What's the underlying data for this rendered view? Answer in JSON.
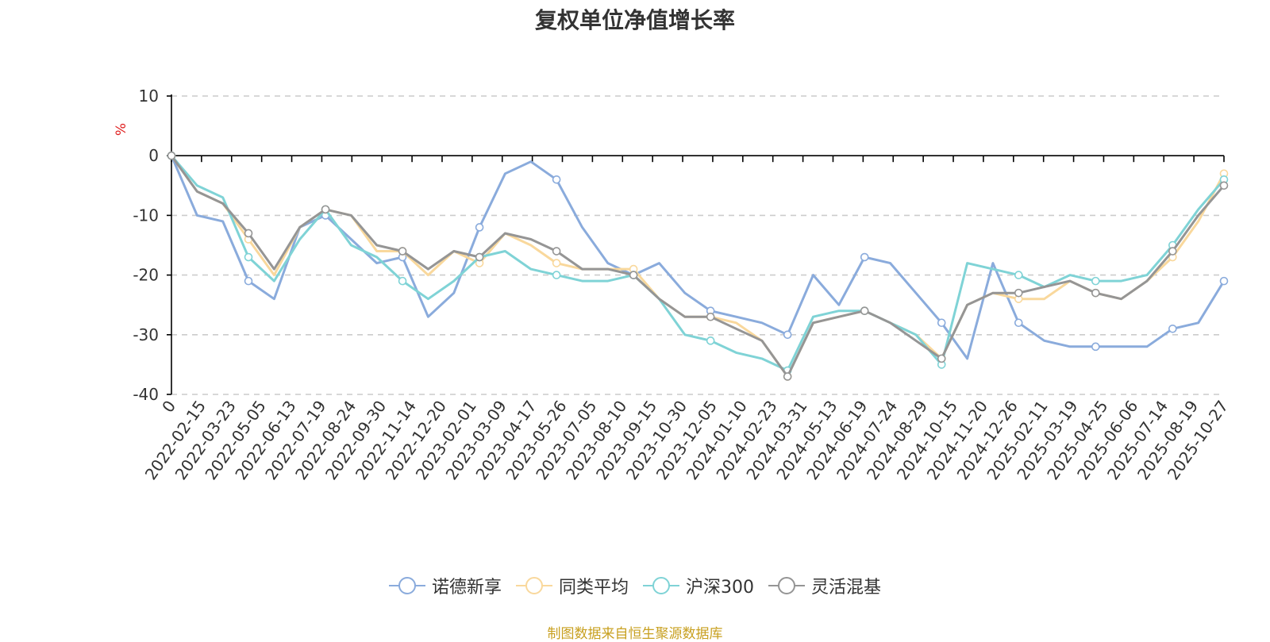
{
  "chart_data": {
    "type": "line",
    "title": "复权单位净值增长率",
    "ylabel": "%",
    "ylim": [
      -40,
      10
    ],
    "yticks": [
      10,
      0,
      -10,
      -20,
      -30,
      -40
    ],
    "xtick_labels": [
      "0",
      "2022-02-15",
      "2022-03-23",
      "2022-05-05",
      "2022-06-13",
      "2022-07-19",
      "2022-08-24",
      "2022-09-30",
      "2022-11-14",
      "2022-12-20",
      "2023-02-01",
      "2023-03-09",
      "2023-04-17",
      "2023-05-26",
      "2023-07-05",
      "2023-08-10",
      "2023-09-15",
      "2023-10-30",
      "2023-12-05",
      "2024-01-10",
      "2024-02-23",
      "2024-03-31",
      "2024-05-13",
      "2024-06-19",
      "2024-07-24",
      "2024-08-29",
      "2024-10-15",
      "2024-11-20",
      "2024-12-26",
      "2025-02-11",
      "2025-03-19",
      "2025-04-25",
      "2025-06-06",
      "2025-07-14",
      "2025-08-19",
      "2025-10-27"
    ],
    "legend_position": "bottom-center",
    "series": [
      {
        "name": "诺德新享",
        "color": "#8aabdc",
        "values": [
          0,
          -10,
          -11,
          -21,
          -24,
          -12,
          -10,
          -14,
          -18,
          -17,
          -27,
          -23,
          -12,
          -3,
          -1,
          -4,
          -12,
          -18,
          -20,
          -18,
          -23,
          -26,
          -27,
          -28,
          -30,
          -20,
          -25,
          -17,
          -18,
          -23,
          -28,
          -34,
          -18,
          -28,
          -31,
          -32,
          -32,
          -32,
          -32,
          -29,
          -28,
          -21
        ]
      },
      {
        "name": "同类平均",
        "color": "#f9d89c",
        "values": [
          0,
          -6,
          -8,
          -14,
          -20,
          -12,
          -9,
          -10,
          -16,
          -16,
          -20,
          -16,
          -18,
          -13,
          -15,
          -18,
          -19,
          -19,
          -19,
          -24,
          -27,
          -27,
          -28,
          -31,
          -37,
          -28,
          -27,
          -26,
          -28,
          -30,
          -34,
          -25,
          -23,
          -24,
          -24,
          -21,
          -23,
          -24,
          -21,
          -17,
          -11,
          -3
        ]
      },
      {
        "name": "沪深300",
        "color": "#7fd3d6",
        "values": [
          0,
          -5,
          -7,
          -17,
          -21,
          -14,
          -9,
          -15,
          -17,
          -21,
          -24,
          -21,
          -17,
          -16,
          -19,
          -20,
          -21,
          -21,
          -20,
          -24,
          -30,
          -31,
          -33,
          -34,
          -36,
          -27,
          -26,
          -26,
          -28,
          -30,
          -35,
          -18,
          -19,
          -20,
          -22,
          -20,
          -21,
          -21,
          -20,
          -15,
          -9,
          -4
        ]
      },
      {
        "name": "灵活混基",
        "color": "#959595",
        "values": [
          0,
          -6,
          -8,
          -13,
          -19,
          -12,
          -9,
          -10,
          -15,
          -16,
          -19,
          -16,
          -17,
          -13,
          -14,
          -16,
          -19,
          -19,
          -20,
          -24,
          -27,
          -27,
          -29,
          -31,
          -37,
          -28,
          -27,
          -26,
          -28,
          -31,
          -34,
          -25,
          -23,
          -23,
          -22,
          -21,
          -23,
          -24,
          -21,
          -16,
          -10,
          -5
        ]
      }
    ]
  },
  "legend": {
    "items": [
      "诺德新享",
      "同类平均",
      "沪深300",
      "灵活混基"
    ]
  },
  "source_note": "制图数据来自恒生聚源数据库"
}
